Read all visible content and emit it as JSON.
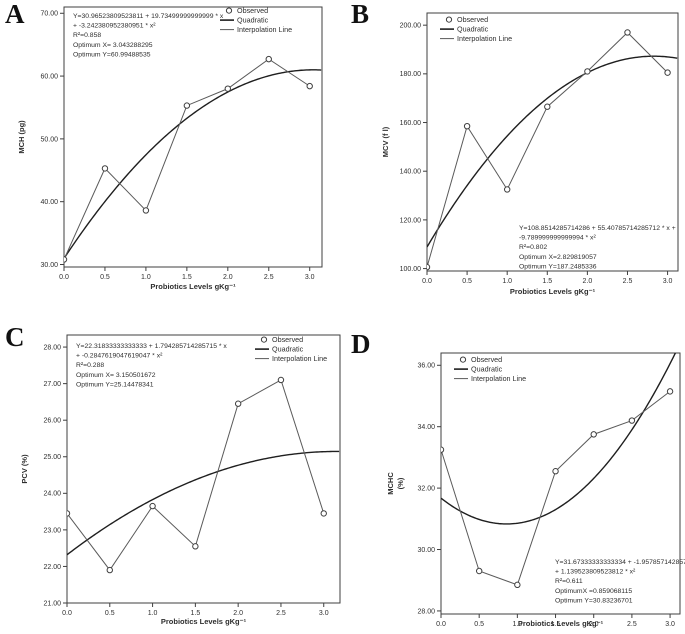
{
  "figure": {
    "panels": [
      {
        "letter": "A"
      },
      {
        "letter": "B"
      },
      {
        "letter": "C"
      },
      {
        "letter": "D"
      }
    ]
  },
  "colors": {
    "frame": "#3f3f3f",
    "quadratic_line": "#1f1f1f",
    "interpolation_line": "#5a5a5a",
    "marker": "#3f3f3f",
    "text": "#2e2e2e"
  },
  "chart_data": [
    {
      "type": "scatter",
      "panel": "A",
      "xlabel": "Probiotics Levels gKg⁻¹",
      "ylabel": "MCH (pg)",
      "x": [
        0.0,
        0.5,
        1.0,
        1.5,
        2.0,
        2.5,
        3.0
      ],
      "observed": [
        30.8,
        45.3,
        38.6,
        55.3,
        58.0,
        62.7,
        58.4
      ],
      "quadratic_fit": {
        "intercept": 30.96523809523811,
        "linear": 19.73499999999999,
        "quadratic": -3.242380952380951,
        "r_squared": 0.858,
        "optimum_x": 3.043288295,
        "optimum_y": 60.99488535
      },
      "xticks": [
        "0.0",
        "0.5",
        "1.0",
        "1.5",
        "2.0",
        "2.5",
        "3.0"
      ],
      "yticks": [
        30,
        40,
        50,
        60,
        70
      ],
      "ytick_labels": [
        "30.00",
        "40.00",
        "50.00",
        "60.00",
        "70.00"
      ],
      "xlim": [
        0,
        3.15
      ],
      "ylim": [
        29.6,
        71
      ],
      "grid": false,
      "legend": [
        "Observed",
        "Quadratic",
        "Interpolation Line"
      ],
      "legend_pos": "top-right",
      "annotation_pos": "top-left",
      "annotation": [
        "Y=30.96523809523811 + 19.73499999999999 * x",
        "+ -3.242380952380951 * x²",
        "R²=0.858",
        "Optimum X= 3.043288295",
        "Optimum Y=60.99488535"
      ]
    },
    {
      "type": "scatter",
      "panel": "B",
      "xlabel": "Probiotics Levels gKg⁻¹",
      "ylabel": "MCV (f l)",
      "x": [
        0.0,
        0.5,
        1.0,
        1.5,
        2.0,
        2.5,
        3.0
      ],
      "observed": [
        100.6,
        158.5,
        132.5,
        166.5,
        181.0,
        197.0,
        180.5
      ],
      "quadratic_fit": {
        "intercept": 108.8514285714286,
        "linear": 55.40785714285712,
        "quadratic": -9.789999999999994,
        "r_squared": 0.802,
        "optimum_x": 2.829819057,
        "optimum_y": 187.2485336
      },
      "xticks": [
        "0.0",
        "0.5",
        "1.0",
        "1.5",
        "2.0",
        "2.5",
        "3.0"
      ],
      "yticks": [
        100,
        120,
        140,
        160,
        180,
        200
      ],
      "ytick_labels": [
        "100.00",
        "120.00",
        "140.00",
        "160.00",
        "180.00",
        "200.00"
      ],
      "xlim": [
        0,
        3.13
      ],
      "ylim": [
        99,
        205
      ],
      "grid": false,
      "legend": [
        "Observed",
        "Quadratic",
        "Interpolation Line"
      ],
      "legend_pos": "top-left",
      "annotation_pos": "bottom-right",
      "annotation": [
        "Y=108.8514285714286 + 55.40785714285712 * x +",
        "-9.789999999999994 * x²",
        "R²=0.802",
        "Optimum X=2.829819057",
        "Optimum Y=187.2485336"
      ]
    },
    {
      "type": "scatter",
      "panel": "C",
      "xlabel": "Probiotics Levels gKg⁻¹",
      "ylabel": "PCV (%)",
      "x": [
        0.0,
        0.5,
        1.0,
        1.5,
        2.0,
        2.5,
        3.0
      ],
      "observed": [
        23.45,
        21.9,
        23.65,
        22.55,
        26.45,
        27.1,
        23.45
      ],
      "quadratic_fit": {
        "intercept": 22.31833333333333,
        "linear": 1.794285714285715,
        "quadratic": -0.2847619047619047,
        "r_squared": 0.288,
        "optimum_x": 3.150501672,
        "optimum_y": 25.14478341
      },
      "xticks": [
        "0.0",
        "0.5",
        "1.0",
        "1.5",
        "2.0",
        "2.5",
        "3.0"
      ],
      "yticks": [
        21,
        22,
        23,
        24,
        25,
        26,
        27,
        28
      ],
      "ytick_labels": [
        "21.00",
        "22.00",
        "23.00",
        "24.00",
        "25.00",
        "26.00",
        "27.00",
        "28.00"
      ],
      "xlim": [
        0,
        3.19
      ],
      "ylim": [
        21,
        28.33
      ],
      "grid": false,
      "legend": [
        "Observed",
        "Quadratic",
        "Interpolation Line"
      ],
      "legend_pos": "top-right",
      "annotation_pos": "top-left",
      "annotation": [
        "Y=22.31833333333333 + 1.794285714285715 * x",
        "+ -0.2847619047619047 * x²",
        "R²=0.288",
        "Optimum X= 3.150501672",
        "Optimum Y=25.14478341"
      ]
    },
    {
      "type": "scatter",
      "panel": "D",
      "xlabel": "Probiotics Levels gKg⁻¹",
      "ylabel": "MCHC (%)",
      "x": [
        0.0,
        0.5,
        1.0,
        1.5,
        2.0,
        2.5,
        3.0
      ],
      "observed": [
        33.25,
        29.3,
        28.85,
        32.55,
        33.75,
        34.2,
        35.15
      ],
      "quadratic_fit": {
        "intercept": 31.67333333333334,
        "linear": -1.957857142857151,
        "quadratic": 1.139523809523812,
        "r_squared": 0.611,
        "optimum_x": 0.859068115,
        "optimum_y": 30.83236701
      },
      "xticks": [
        "0.0",
        "0.5",
        "1.0",
        "1.5",
        "2.0",
        "2.5",
        "3.0"
      ],
      "yticks": [
        28,
        30,
        32,
        34,
        36
      ],
      "ytick_labels": [
        "28.00",
        "30.00",
        "32.00",
        "34.00",
        "36.00"
      ],
      "xlim": [
        0,
        3.13
      ],
      "ylim": [
        27.9,
        36.4
      ],
      "grid": false,
      "legend": [
        "Observed",
        "Quadratic",
        "Interpolation Line"
      ],
      "legend_pos": "top-left",
      "annotation_pos": "bottom-right",
      "annotation": [
        "Y=31.67333333333334 + -1.957857142857151 * x",
        "+ 1.139523809523812 * x²",
        "R²=0.611",
        "OptimumX =0.859068115",
        "Optimum Y=30.83236701"
      ]
    }
  ]
}
